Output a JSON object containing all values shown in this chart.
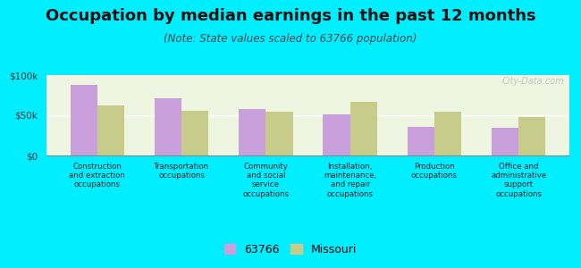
{
  "title": "Occupation by median earnings in the past 12 months",
  "subtitle": "(Note: State values scaled to 63766 population)",
  "categories": [
    "Construction\nand extraction\noccupations",
    "Transportation\noccupations",
    "Community\nand social\nservice\noccupations",
    "Installation,\nmaintenance,\nand repair\noccupations",
    "Production\noccupations",
    "Office and\nadministrative\nsupport\noccupations"
  ],
  "values_63766": [
    88000,
    71000,
    58000,
    51000,
    36000,
    35000
  ],
  "values_missouri": [
    62000,
    56000,
    55000,
    67000,
    54000,
    48000
  ],
  "color_63766": "#c9a0dc",
  "color_missouri": "#c8cc8a",
  "background_plot": "#eef5e0",
  "background_fig": "#00eeff",
  "ylim": [
    0,
    100000
  ],
  "yticks": [
    0,
    50000,
    100000
  ],
  "ytick_labels": [
    "$0",
    "$50k",
    "$100k"
  ],
  "legend_63766": "63766",
  "legend_missouri": "Missouri",
  "watermark": "City-Data.com",
  "title_fontsize": 13,
  "subtitle_fontsize": 8.5,
  "tick_fontsize": 7.5,
  "legend_fontsize": 9,
  "bar_width": 0.32
}
